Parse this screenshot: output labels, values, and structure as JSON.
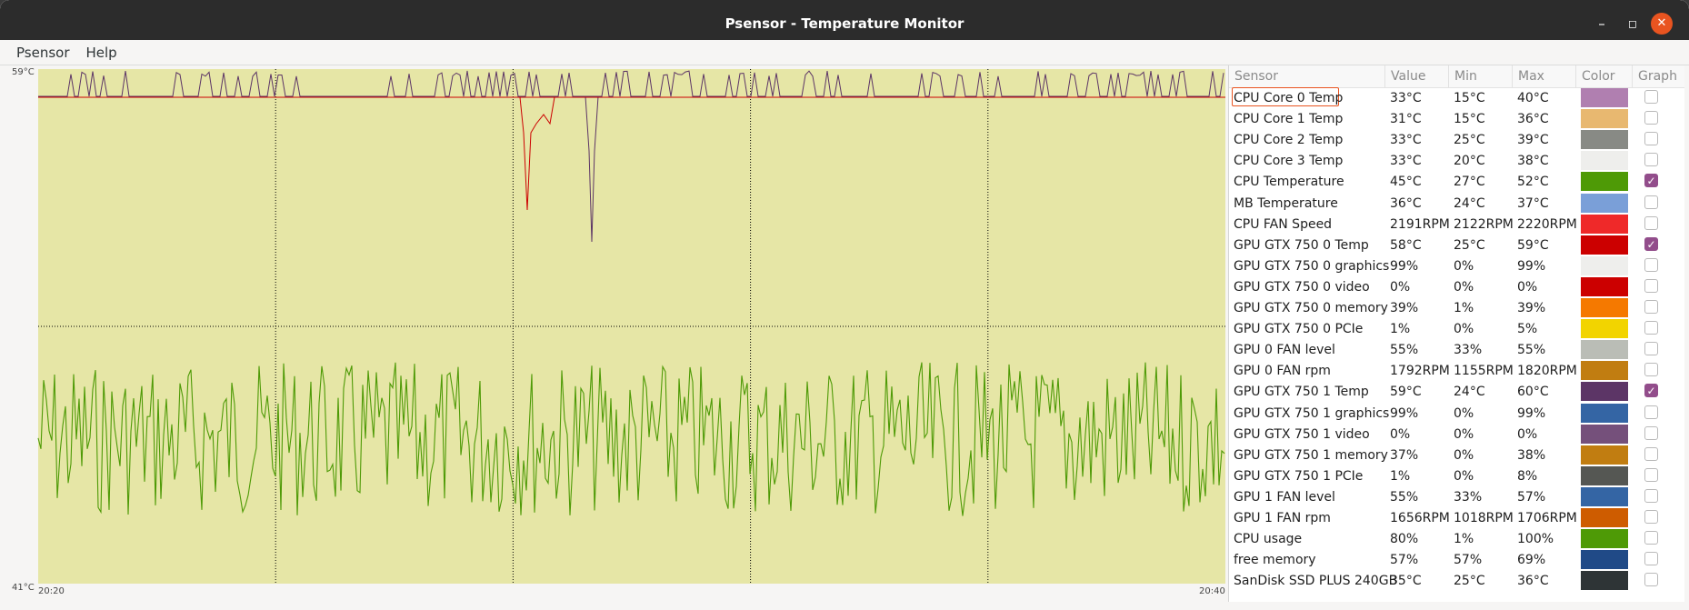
{
  "window": {
    "title": "Psensor - Temperature Monitor",
    "minimize_glyph": "–",
    "maximize_glyph": "◻",
    "close_glyph": "✕"
  },
  "menu": {
    "items": [
      "Psensor",
      "Help"
    ]
  },
  "graph": {
    "y_max_label": "59°C",
    "y_min_label": "41°C",
    "x_start_label": "20:20",
    "x_end_label": "20:40",
    "y_range_celsius": [
      41,
      59
    ],
    "background_color": "#e6e6a6",
    "grid_color": "#000000"
  },
  "table": {
    "headers": [
      "Sensor",
      "Value",
      "Min",
      "Max",
      "Color",
      "Graph"
    ],
    "rows": [
      {
        "sensor": "CPU Core 0 Temp",
        "value": "33°C",
        "min": "15°C",
        "max": "40°C",
        "color": "#b07fb0",
        "graph": false
      },
      {
        "sensor": "CPU Core 1 Temp",
        "value": "31°C",
        "min": "15°C",
        "max": "36°C",
        "color": "#e8b870",
        "graph": false
      },
      {
        "sensor": "CPU Core 2 Temp",
        "value": "33°C",
        "min": "25°C",
        "max": "39°C",
        "color": "#888a85",
        "graph": false
      },
      {
        "sensor": "CPU Core 3 Temp",
        "value": "33°C",
        "min": "20°C",
        "max": "38°C",
        "color": "#eeeeec",
        "graph": false
      },
      {
        "sensor": "CPU Temperature",
        "value": "45°C",
        "min": "27°C",
        "max": "52°C",
        "color": "#4e9a06",
        "graph": true
      },
      {
        "sensor": "MB Temperature",
        "value": "36°C",
        "min": "24°C",
        "max": "37°C",
        "color": "#7a9fd8",
        "graph": false
      },
      {
        "sensor": "CPU FAN Speed",
        "value": "2191RPM",
        "min": "2122RPM",
        "max": "2220RPM",
        "color": "#ef2929",
        "graph": false
      },
      {
        "sensor": "GPU GTX 750 0 Temp",
        "value": "58°C",
        "min": "25°C",
        "max": "59°C",
        "color": "#cc0000",
        "graph": true
      },
      {
        "sensor": "GPU GTX 750 0 graphics",
        "value": "99%",
        "min": "0%",
        "max": "99%",
        "color": "#eeeeec",
        "graph": false
      },
      {
        "sensor": "GPU GTX 750 0 video",
        "value": "0%",
        "min": "0%",
        "max": "0%",
        "color": "#cc0000",
        "graph": false
      },
      {
        "sensor": "GPU GTX 750 0 memory",
        "value": "39%",
        "min": "1%",
        "max": "39%",
        "color": "#f57900",
        "graph": false
      },
      {
        "sensor": "GPU GTX 750 0 PCIe",
        "value": "1%",
        "min": "0%",
        "max": "5%",
        "color": "#f2d400",
        "graph": false
      },
      {
        "sensor": "GPU 0 FAN level",
        "value": "55%",
        "min": "33%",
        "max": "55%",
        "color": "#babdb6",
        "graph": false
      },
      {
        "sensor": "GPU 0 FAN rpm",
        "value": "1792RPM",
        "min": "1155RPM",
        "max": "1820RPM",
        "color": "#c17d11",
        "graph": false
      },
      {
        "sensor": "GPU GTX 750 1 Temp",
        "value": "59°C",
        "min": "24°C",
        "max": "60°C",
        "color": "#5c3566",
        "graph": true
      },
      {
        "sensor": "GPU GTX 750 1 graphics",
        "value": "99%",
        "min": "0%",
        "max": "99%",
        "color": "#3465a4",
        "graph": false
      },
      {
        "sensor": "GPU GTX 750 1 video",
        "value": "0%",
        "min": "0%",
        "max": "0%",
        "color": "#75507b",
        "graph": false
      },
      {
        "sensor": "GPU GTX 750 1 memory",
        "value": "37%",
        "min": "0%",
        "max": "38%",
        "color": "#c17d11",
        "graph": false
      },
      {
        "sensor": "GPU GTX 750 1 PCIe",
        "value": "1%",
        "min": "0%",
        "max": "8%",
        "color": "#555753",
        "graph": false
      },
      {
        "sensor": "GPU 1 FAN level",
        "value": "55%",
        "min": "33%",
        "max": "57%",
        "color": "#3465a4",
        "graph": false
      },
      {
        "sensor": "GPU 1 FAN rpm",
        "value": "1656RPM",
        "min": "1018RPM",
        "max": "1706RPM",
        "color": "#ce5c00",
        "graph": false
      },
      {
        "sensor": "CPU usage",
        "value": "80%",
        "min": "1%",
        "max": "100%",
        "color": "#4e9a06",
        "graph": false
      },
      {
        "sensor": "free memory",
        "value": "57%",
        "min": "57%",
        "max": "69%",
        "color": "#204a87",
        "graph": false
      },
      {
        "sensor": "SanDisk SSD PLUS 240GB",
        "value": "35°C",
        "min": "25°C",
        "max": "36°C",
        "color": "#2e3436",
        "graph": false
      }
    ]
  }
}
